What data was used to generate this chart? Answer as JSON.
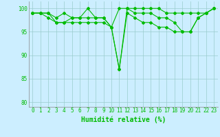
{
  "x": [
    0,
    1,
    2,
    3,
    4,
    5,
    6,
    7,
    8,
    9,
    10,
    11,
    12,
    13,
    14,
    15,
    16,
    17,
    18,
    19,
    20,
    21,
    22,
    23
  ],
  "series": [
    [
      99,
      99,
      99,
      97,
      97,
      98,
      98,
      100,
      98,
      98,
      96,
      100,
      100,
      100,
      100,
      100,
      100,
      99,
      99,
      99,
      99,
      99,
      99,
      100
    ],
    [
      99,
      99,
      99,
      98,
      99,
      98,
      98,
      98,
      98,
      98,
      96,
      87,
      100,
      99,
      99,
      99,
      98,
      98,
      97,
      95,
      95,
      98,
      99,
      100
    ],
    [
      99,
      99,
      98,
      97,
      97,
      97,
      97,
      97,
      97,
      97,
      96,
      87,
      99,
      98,
      97,
      97,
      96,
      96,
      95,
      95,
      95,
      98,
      99,
      100
    ]
  ],
  "line_color": "#00bb00",
  "marker": "D",
  "markersize": 2.0,
  "linewidth": 0.8,
  "bg_color": "#cceeff",
  "grid_color": "#99cccc",
  "ylabel_values": [
    80,
    85,
    90,
    95,
    100
  ],
  "ylim": [
    79,
    101.5
  ],
  "xlim": [
    -0.5,
    23.5
  ],
  "xlabel": "Humidité relative (%)",
  "xlabel_color": "#00bb00",
  "tick_color": "#00bb00",
  "tick_fontsize": 5.5,
  "xlabel_fontsize": 7.0
}
